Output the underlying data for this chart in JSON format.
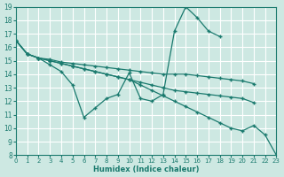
{
  "xlabel": "Humidex (Indice chaleur)",
  "bg_color": "#cde8e2",
  "grid_color": "#ffffff",
  "line_color": "#1a7a6e",
  "ylim": [
    8,
    19
  ],
  "xlim": [
    0,
    23
  ],
  "yticks": [
    8,
    9,
    10,
    11,
    12,
    13,
    14,
    15,
    16,
    17,
    18,
    19
  ],
  "xticks": [
    0,
    1,
    2,
    3,
    4,
    5,
    6,
    7,
    8,
    9,
    10,
    11,
    12,
    13,
    14,
    15,
    16,
    17,
    18,
    19,
    20,
    21,
    22,
    23
  ],
  "series": [
    {
      "x": [
        0,
        1,
        2,
        3,
        4,
        5,
        6,
        7,
        8,
        9,
        10,
        11,
        12,
        13,
        14,
        15,
        16,
        17,
        18,
        19,
        20,
        21,
        22,
        23
      ],
      "y": [
        16.5,
        15.5,
        15.2,
        14.7,
        14.2,
        13.2,
        10.8,
        11.5,
        12.2,
        12.5,
        14.1,
        12.2,
        12.0,
        12.5,
        17.2,
        19.0,
        18.2,
        17.2,
        16.8,
        null,
        null,
        null,
        null,
        null
      ]
    },
    {
      "x": [
        0,
        1,
        2,
        3,
        4,
        5,
        6,
        7,
        8,
        9,
        10,
        11,
        12,
        13,
        14,
        15,
        16,
        17,
        18,
        19,
        20,
        21,
        22,
        23
      ],
      "y": [
        16.5,
        15.5,
        15.2,
        15.1,
        14.9,
        14.8,
        14.7,
        14.6,
        14.5,
        14.4,
        14.3,
        14.2,
        14.1,
        14.0,
        14.0,
        14.0,
        13.9,
        13.8,
        13.7,
        13.6,
        13.5,
        13.3,
        null,
        null
      ]
    },
    {
      "x": [
        0,
        1,
        2,
        3,
        4,
        5,
        6,
        7,
        8,
        9,
        10,
        11,
        12,
        13,
        14,
        15,
        16,
        17,
        18,
        19,
        20,
        21,
        22,
        23
      ],
      "y": [
        16.5,
        15.5,
        15.2,
        15.0,
        14.8,
        14.6,
        14.4,
        14.2,
        14.0,
        13.8,
        13.6,
        13.4,
        13.2,
        13.0,
        12.8,
        12.7,
        12.6,
        12.5,
        12.4,
        12.3,
        12.2,
        11.9,
        null,
        null
      ]
    },
    {
      "x": [
        0,
        1,
        2,
        3,
        4,
        5,
        6,
        7,
        8,
        9,
        10,
        11,
        12,
        13,
        14,
        15,
        16,
        17,
        18,
        19,
        20,
        21,
        22,
        23
      ],
      "y": [
        16.5,
        15.5,
        15.2,
        15.0,
        14.8,
        14.6,
        14.4,
        14.2,
        14.0,
        13.8,
        13.6,
        13.2,
        12.8,
        12.4,
        12.0,
        11.6,
        11.2,
        10.8,
        10.4,
        10.0,
        9.8,
        10.2,
        9.5,
        8.0
      ]
    }
  ]
}
